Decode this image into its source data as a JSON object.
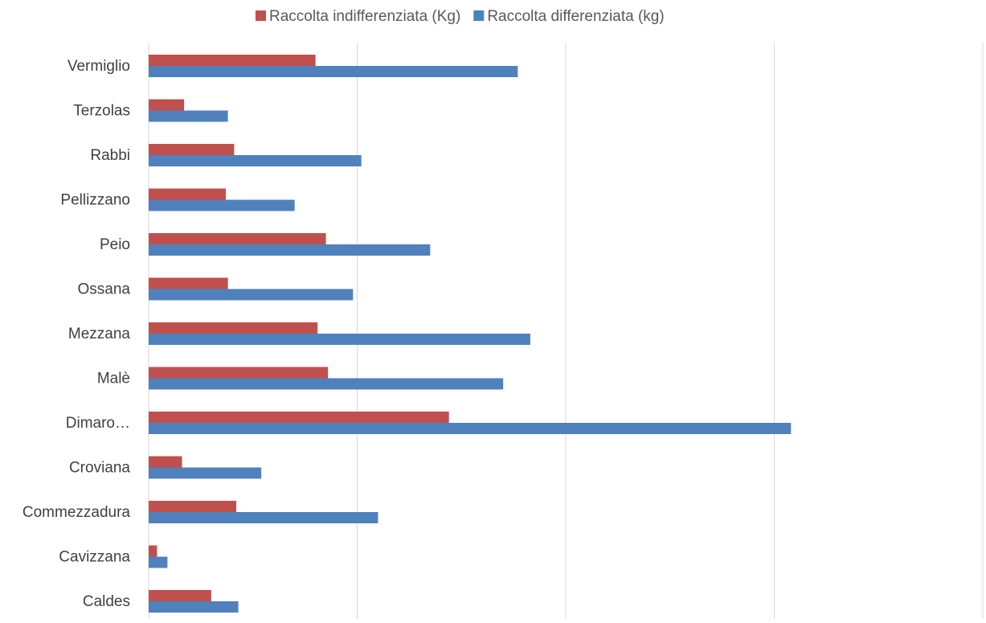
{
  "chart_data": {
    "type": "bar",
    "orientation": "horizontal",
    "categories": [
      "Vermiglio",
      "Terzolas",
      "Rabbi",
      "Pellizzano",
      "Peio",
      "Ossana",
      "Mezzana",
      "Malè",
      "Dimaro…",
      "Croviana",
      "Commezzadura",
      "Cavizzana",
      "Caldes"
    ],
    "series": [
      {
        "name": "Raccolta indifferenziata (Kg)",
        "color": "#c0504d",
        "values": [
          0.8,
          0.17,
          0.41,
          0.37,
          0.85,
          0.38,
          0.81,
          0.86,
          1.44,
          0.16,
          0.42,
          0.04,
          0.3
        ]
      },
      {
        "name": "Raccolta differenziata (kg)",
        "color": "#4f81bd",
        "values": [
          1.77,
          0.38,
          1.02,
          0.7,
          1.35,
          0.98,
          1.83,
          1.7,
          3.08,
          0.54,
          1.1,
          0.09,
          0.43
        ]
      }
    ],
    "xlim": [
      0,
      4
    ],
    "gridlines": [
      0,
      1,
      2,
      3,
      4
    ],
    "x_tick_labels_visible": false,
    "grid": true,
    "legend_position": "top"
  }
}
